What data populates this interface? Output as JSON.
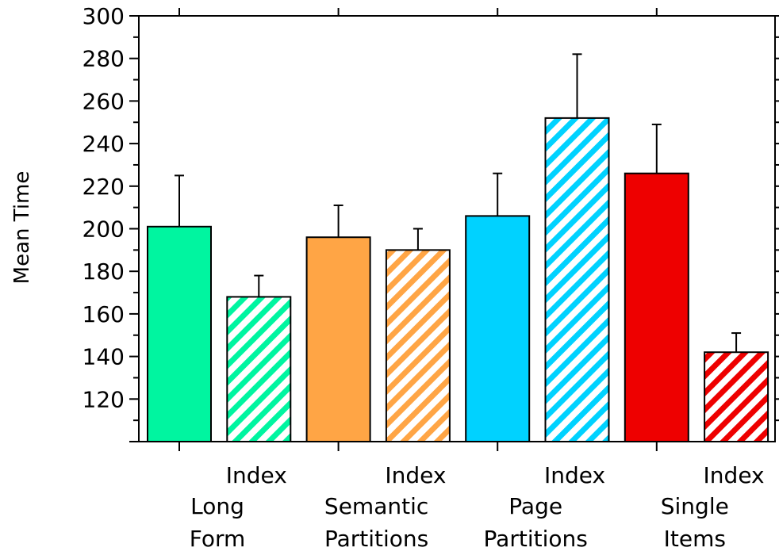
{
  "chart_data": {
    "type": "bar",
    "title": "",
    "xlabel": "",
    "ylabel": "Mean Time",
    "ylim": [
      100,
      300
    ],
    "yticks": [
      120,
      140,
      160,
      180,
      200,
      220,
      240,
      260,
      280,
      300
    ],
    "grid": false,
    "legend": "none",
    "bars": [
      {
        "label": "",
        "value": 201,
        "error": 24,
        "color": "#00f5a0",
        "pattern": "solid"
      },
      {
        "label": "Index",
        "value": 168,
        "error": 10,
        "color": "#00f5a0",
        "pattern": "hatched"
      },
      {
        "label": "",
        "value": 196,
        "error": 15,
        "color": "#ffa545",
        "pattern": "solid"
      },
      {
        "label": "Index",
        "value": 190,
        "error": 10,
        "color": "#ffa545",
        "pattern": "hatched"
      },
      {
        "label": "",
        "value": 206,
        "error": 20,
        "color": "#00d2ff",
        "pattern": "solid"
      },
      {
        "label": "Index",
        "value": 252,
        "error": 30,
        "color": "#00d2ff",
        "pattern": "hatched"
      },
      {
        "label": "",
        "value": 226,
        "error": 23,
        "color": "#ee0000",
        "pattern": "solid"
      },
      {
        "label": "Index",
        "value": 142,
        "error": 9,
        "color": "#ee0000",
        "pattern": "hatched"
      }
    ],
    "groups": [
      {
        "line1": "Long",
        "line2": "Form"
      },
      {
        "line1": "Semantic",
        "line2": "Partitions"
      },
      {
        "line1": "Page",
        "line2": "Partitions"
      },
      {
        "line1": "Single",
        "line2": "Items"
      }
    ]
  }
}
